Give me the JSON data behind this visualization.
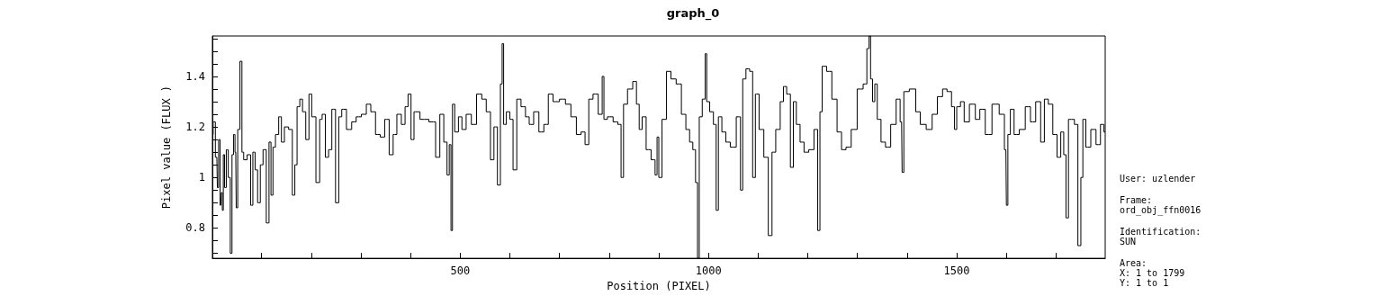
{
  "chart_data": {
    "type": "step",
    "title": "graph_0",
    "xlabel": "Position (PIXEL)",
    "ylabel": "Pixel value (FLUX )",
    "xlim": [
      1,
      1799
    ],
    "ylim": [
      0.68,
      1.56
    ],
    "xticks": [
      {
        "value": 100,
        "label": null
      },
      {
        "value": 200,
        "label": null
      },
      {
        "value": 300,
        "label": null
      },
      {
        "value": 400,
        "label": null
      },
      500,
      {
        "value": 600,
        "label": null
      },
      {
        "value": 700,
        "label": null
      },
      {
        "value": 800,
        "label": null
      },
      {
        "value": 900,
        "label": null
      },
      1000,
      {
        "value": 1100,
        "label": null
      },
      {
        "value": 1200,
        "label": null
      },
      {
        "value": 1300,
        "label": null
      },
      {
        "value": 1400,
        "label": null
      },
      1500,
      {
        "value": 1600,
        "label": null
      },
      {
        "value": 1700,
        "label": null
      }
    ],
    "yticks": [
      {
        "value": 0.7,
        "label": null
      },
      {
        "value": 0.75,
        "label": null
      },
      0.8,
      {
        "value": 0.85,
        "label": null
      },
      {
        "value": 0.9,
        "label": null
      },
      {
        "value": 0.95,
        "label": null
      },
      1,
      {
        "value": 1.05,
        "label": null
      },
      {
        "value": 1.1,
        "label": null
      },
      {
        "value": 1.15,
        "label": null
      },
      1.2,
      {
        "value": 1.25,
        "label": null
      },
      {
        "value": 1.3,
        "label": null
      },
      {
        "value": 1.35,
        "label": null
      },
      1.4,
      {
        "value": 1.45,
        "label": null
      },
      {
        "value": 1.5,
        "label": null
      },
      {
        "value": 1.55,
        "label": null
      }
    ],
    "grid": false,
    "marker": "none",
    "line_style": "solid",
    "annotations": [
      "User: uzlender",
      "Frame:",
      "ord_obj_ffn0016",
      "Identification:",
      "SUN",
      "Area:",
      "X: 1 to 1799",
      "Y: 1 to 1"
    ],
    "series": [
      {
        "color": "#000000",
        "x": [
          1,
          4,
          10,
          12,
          15,
          18,
          20,
          22,
          24,
          27,
          31,
          35,
          39,
          42,
          45,
          48,
          50,
          54,
          59,
          62,
          66,
          76,
          80,
          85,
          89,
          95,
          100,
          106,
          113,
          117,
          121,
          125,
          131,
          138,
          142,
          150,
          159,
          165,
          169,
          174,
          180,
          185,
          193,
          198,
          204,
          215,
          219,
          225,
          232,
          238,
          245,
          253,
          258,
          265,
          277,
          286,
          295,
          307,
          315,
          325,
          334,
          344,
          352,
          362,
          368,
          377,
          386,
          392,
          398,
          404,
          410,
          428,
          446,
          455,
          463,
          471,
          476,
          480,
          483,
          486,
          492,
          501,
          506,
          518,
          527,
          539,
          548,
          557,
          565,
          571,
          579,
          583,
          586,
          589,
          597,
          603,
          610,
          618,
          627,
          636,
          642,
          654,
          663,
          674,
          681,
          693,
          707,
          717,
          729,
          739,
          748,
          755,
          763,
          772,
          784,
          788,
          791,
          802,
          814,
          821,
          827,
          831,
          843,
          852,
          858,
          863,
          870,
          879,
          890,
          895,
          898,
          902,
          911,
          920,
          929,
          941,
          950,
          959,
          965,
          972,
          976,
          980,
          983,
          992,
          995,
          998,
          1007,
          1013,
          1018,
          1022,
          1032,
          1038,
          1050,
          1062,
          1067,
          1071,
          1080,
          1086,
          1092,
          1097,
          1107,
          1116,
          1125,
          1131,
          1140,
          1149,
          1153,
          1162,
          1168,
          1174,
          1180,
          1189,
          1196,
          1208,
          1217,
          1223,
          1226,
          1232,
          1244,
          1253,
          1265,
          1271,
          1283,
          1292,
          1307,
          1316,
          1322,
          1325,
          1328,
          1333,
          1337,
          1343,
          1352,
          1361,
          1373,
          1383,
          1389,
          1391,
          1396,
          1413,
          1422,
          1431,
          1446,
          1455,
          1467,
          1476,
          1485,
          1494,
          1497,
          1503,
          1512,
          1518,
          1533,
          1542,
          1551,
          1564,
          1578,
          1593,
          1599,
          1601,
          1605,
          1611,
          1620,
          1632,
          1644,
          1653,
          1665,
          1673,
          1680,
          1689,
          1698,
          1706,
          1713,
          1718,
          1722,
          1728,
          1734,
          1740,
          1748,
          1752,
          1756,
          1764,
          1776,
          1785,
          1794,
          1799
        ],
        "values": [
          1.17,
          1.22,
          1.08,
          0.96,
          1.15,
          0.89,
          0.94,
          0.87,
          1.09,
          0.96,
          1.11,
          1.0,
          0.7,
          1.09,
          1.17,
          1.1,
          0.88,
          1.19,
          1.46,
          1.1,
          1.07,
          1.09,
          0.89,
          1.1,
          1.03,
          0.9,
          1.05,
          1.11,
          0.82,
          1.14,
          0.93,
          1.12,
          1.17,
          1.24,
          1.14,
          1.2,
          1.19,
          0.93,
          1.05,
          1.28,
          1.31,
          1.26,
          1.15,
          1.33,
          1.24,
          0.98,
          1.23,
          1.25,
          1.08,
          1.11,
          1.27,
          0.9,
          1.24,
          1.27,
          1.19,
          1.22,
          1.24,
          1.25,
          1.29,
          1.26,
          1.17,
          1.16,
          1.23,
          1.09,
          1.17,
          1.25,
          1.21,
          1.28,
          1.33,
          1.15,
          1.26,
          1.23,
          1.22,
          1.08,
          1.25,
          1.14,
          1.01,
          1.13,
          0.79,
          1.29,
          1.18,
          1.24,
          1.19,
          1.25,
          1.21,
          1.33,
          1.31,
          1.26,
          1.07,
          1.2,
          0.97,
          1.37,
          1.53,
          1.21,
          1.26,
          1.23,
          1.03,
          1.31,
          1.28,
          1.24,
          1.21,
          1.26,
          1.18,
          1.21,
          1.33,
          1.3,
          1.31,
          1.29,
          1.24,
          1.17,
          1.18,
          1.13,
          1.31,
          1.33,
          1.25,
          1.4,
          1.23,
          1.24,
          1.22,
          1.21,
          1.0,
          1.29,
          1.35,
          1.38,
          1.29,
          1.19,
          1.24,
          1.11,
          1.07,
          1.01,
          1.16,
          1.0,
          1.23,
          1.42,
          1.39,
          1.37,
          1.25,
          1.19,
          1.14,
          1.11,
          0.98,
          0.68,
          1.24,
          1.31,
          1.49,
          1.3,
          1.26,
          1.21,
          0.87,
          1.24,
          1.18,
          1.14,
          1.12,
          1.24,
          0.95,
          1.39,
          1.43,
          1.42,
          1.0,
          1.33,
          1.19,
          1.08,
          0.77,
          1.1,
          1.19,
          1.3,
          1.36,
          1.33,
          1.04,
          1.3,
          1.21,
          1.14,
          1.1,
          1.11,
          1.19,
          0.79,
          1.26,
          1.44,
          1.42,
          1.31,
          1.18,
          1.11,
          1.12,
          1.19,
          1.35,
          1.37,
          1.51,
          1.56,
          1.39,
          1.3,
          1.37,
          1.23,
          1.14,
          1.12,
          1.21,
          1.31,
          1.22,
          1.02,
          1.34,
          1.35,
          1.26,
          1.21,
          1.19,
          1.25,
          1.32,
          1.35,
          1.34,
          1.28,
          1.19,
          1.28,
          1.3,
          1.22,
          1.29,
          1.23,
          1.27,
          1.17,
          1.29,
          1.25,
          1.11,
          0.89,
          1.17,
          1.27,
          1.17,
          1.19,
          1.28,
          1.22,
          1.3,
          1.14,
          1.31,
          1.29,
          1.17,
          1.08,
          1.18,
          1.09,
          0.84,
          1.23,
          1.23,
          1.21,
          0.73,
          1.0,
          1.23,
          1.12,
          1.19,
          1.13,
          1.21,
          1.18
        ]
      }
    ]
  }
}
